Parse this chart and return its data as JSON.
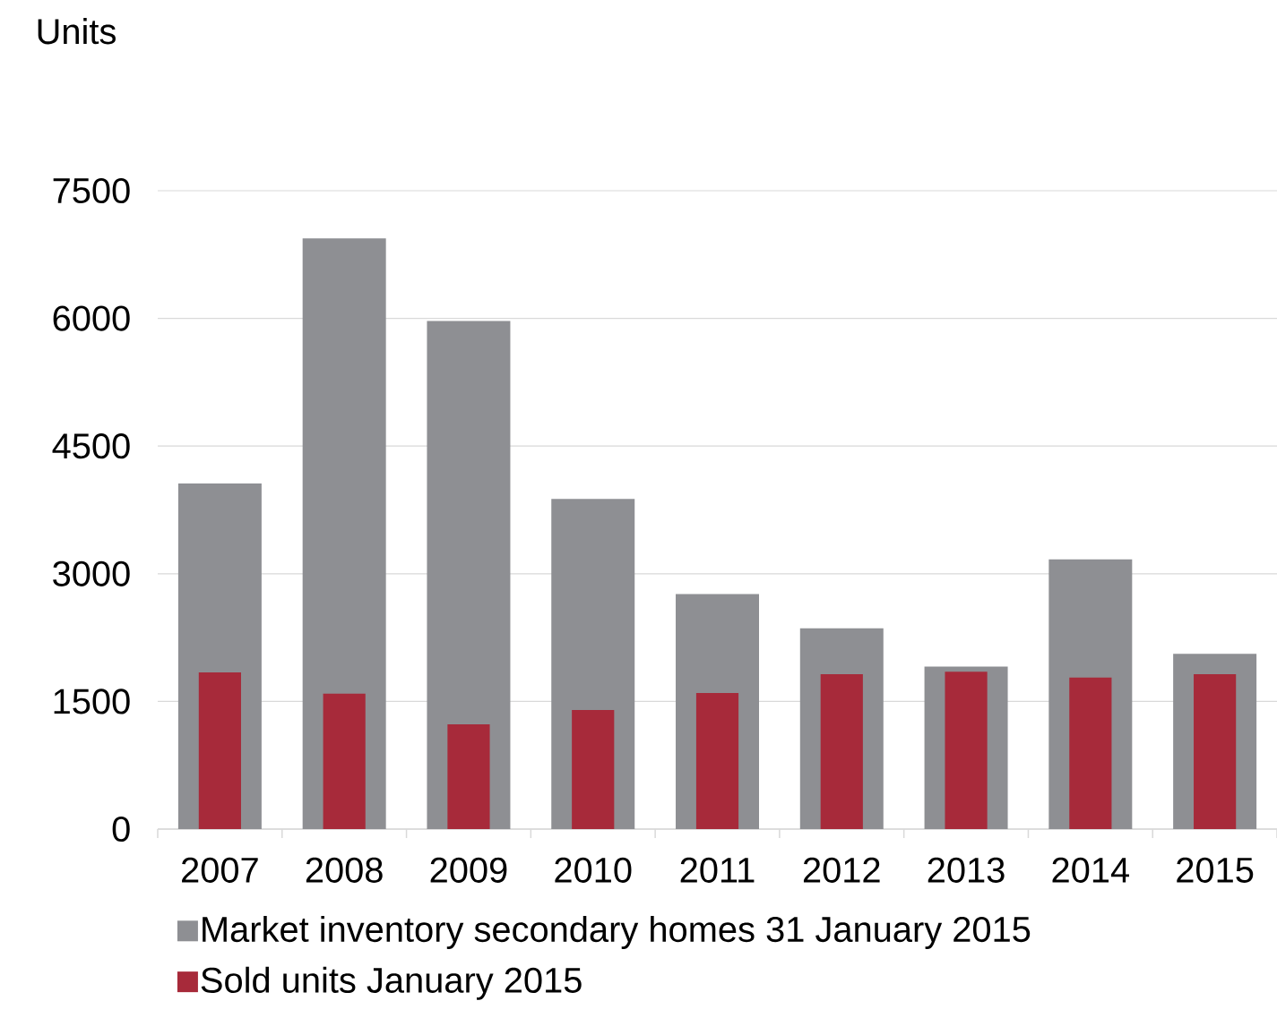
{
  "chart_data": {
    "type": "bar",
    "ylabel": "Units",
    "categories": [
      "2007",
      "2008",
      "2009",
      "2010",
      "2011",
      "2012",
      "2013",
      "2014",
      "2015"
    ],
    "series": [
      {
        "name": "Market inventory secondary homes 31 January 2015",
        "color": "#8e8f93",
        "values": [
          4060,
          6940,
          5970,
          3880,
          2760,
          2360,
          1910,
          3170,
          2060
        ]
      },
      {
        "name": "Sold units January 2015",
        "color": "#a72a3a",
        "values": [
          1840,
          1590,
          1230,
          1400,
          1600,
          1820,
          1850,
          1780,
          1820
        ]
      }
    ],
    "ylim": [
      0,
      7500
    ],
    "yticks": [
      0,
      1500,
      3000,
      4500,
      6000,
      7500
    ],
    "grid": "y",
    "legend": "bottom"
  }
}
